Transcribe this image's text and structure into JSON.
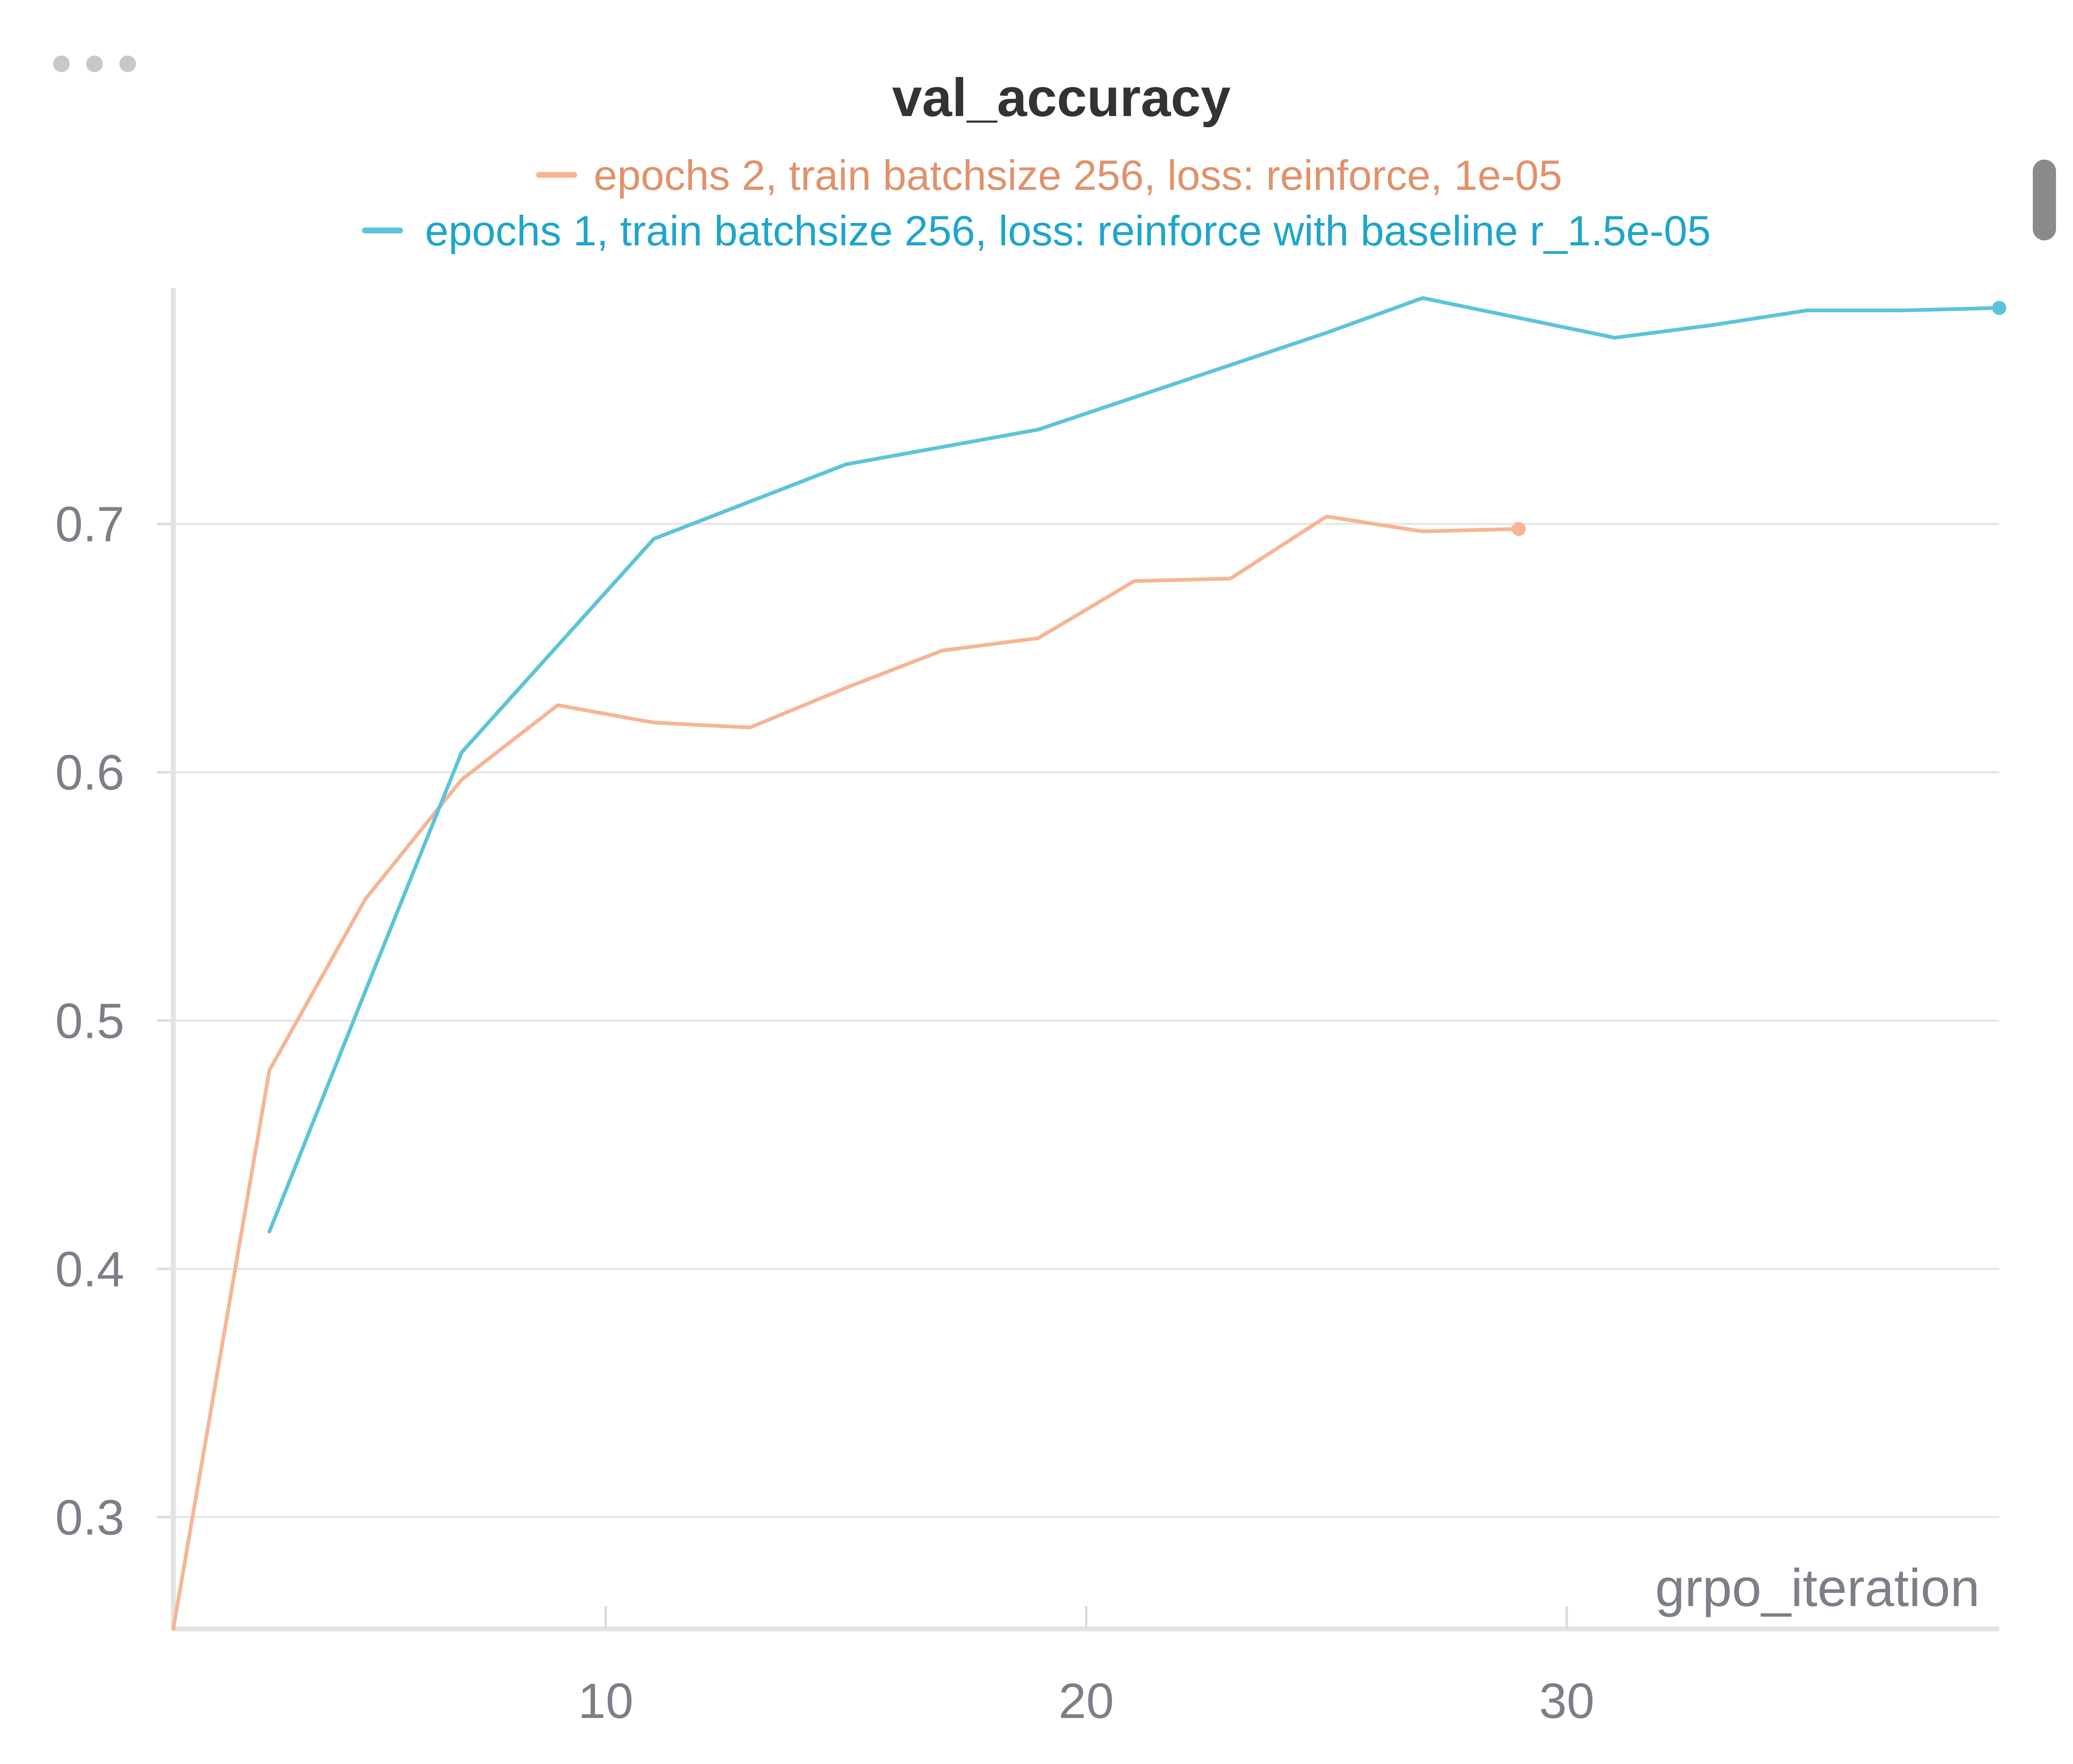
{
  "panel": {
    "menu_icon": "more-horizontal-icon",
    "scrollbar_icon": "scrollbar-handle"
  },
  "chart_data": {
    "type": "line",
    "title": "val_accuracy",
    "xlabel": "grpo_iteration",
    "ylabel": "",
    "xlim": [
      1,
      39
    ],
    "ylim": [
      0.255,
      0.795
    ],
    "x_ticks": [
      10,
      20,
      30
    ],
    "y_ticks": [
      0.3,
      0.4,
      0.5,
      0.6,
      0.7
    ],
    "grid": true,
    "legend_position": "top-center",
    "series": [
      {
        "name": "epochs 2, train batchsize 256, loss: reinforce, 1e-05",
        "color": "#f6b594",
        "label_color": "#e0926a",
        "x": [
          1,
          3,
          5,
          7,
          9,
          11,
          13,
          15,
          17,
          19,
          21,
          23,
          25,
          27,
          29
        ],
        "y": [
          0.255,
          0.48,
          0.549,
          0.597,
          0.627,
          0.62,
          0.618,
          0.634,
          0.649,
          0.654,
          0.677,
          0.678,
          0.703,
          0.697,
          0.698
        ]
      },
      {
        "name": "epochs 1, train batchsize 256, loss: reinforce with baseline r_1.5e-05",
        "color": "#5bc4d8",
        "label_color": "#1ea5cc",
        "x": [
          3,
          5,
          7,
          9,
          11,
          13,
          15,
          17,
          19,
          21,
          23,
          25,
          27,
          29,
          31,
          33,
          35,
          37,
          39
        ],
        "y": [
          0.415,
          0.512,
          0.608,
          0.651,
          0.694,
          0.709,
          0.724,
          0.731,
          0.738,
          0.751,
          0.764,
          0.777,
          0.791,
          0.783,
          0.775,
          0.78,
          0.786,
          0.786,
          0.787
        ]
      }
    ]
  }
}
